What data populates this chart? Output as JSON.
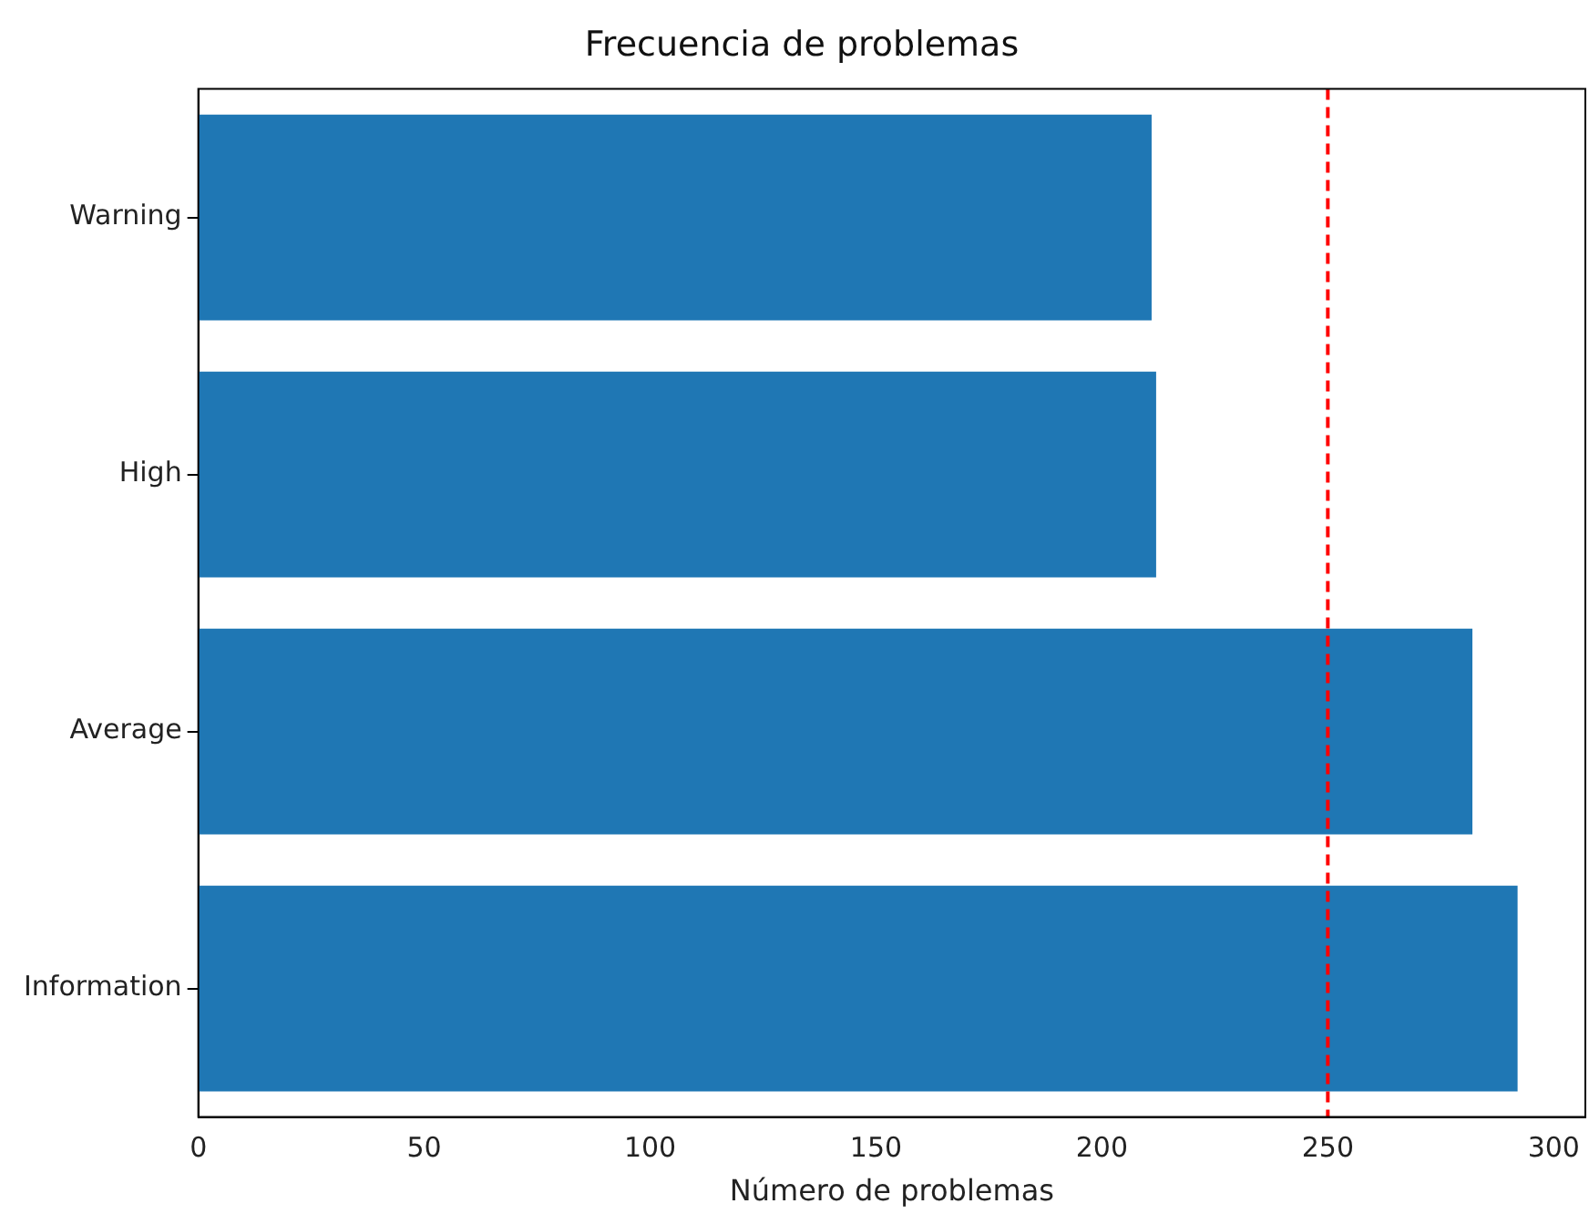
{
  "chart_data": {
    "type": "bar",
    "orientation": "horizontal",
    "title": "Frecuencia de problemas",
    "xlabel": "Número de problemas",
    "categories": [
      "Warning",
      "High",
      "Average",
      "Information"
    ],
    "values": [
      211,
      212,
      282,
      292
    ],
    "color": "#1f77b4",
    "xlim": [
      0,
      307
    ],
    "xticks": [
      0,
      50,
      100,
      150,
      200,
      250,
      300
    ],
    "ref_lines": [
      {
        "axis": "x",
        "value": 250,
        "color": "#ff0000",
        "line_style": "dashed"
      }
    ],
    "grid": false,
    "legend": false
  }
}
